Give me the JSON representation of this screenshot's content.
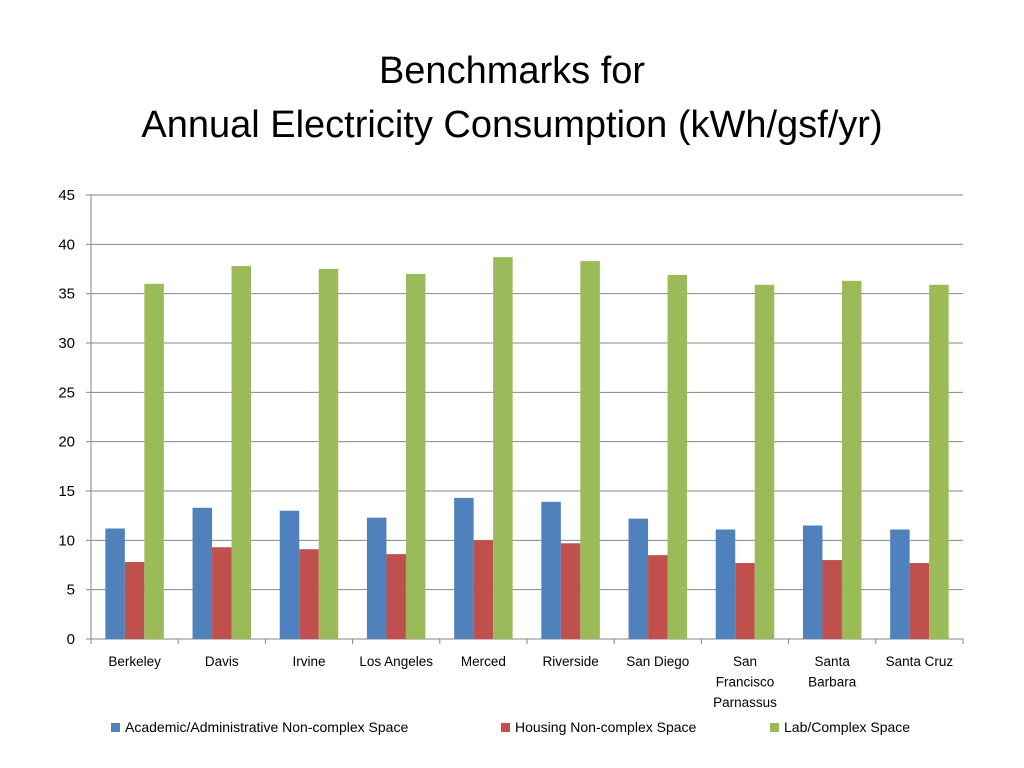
{
  "chart_data": {
    "type": "bar",
    "title_lines": [
      "Benchmarks for",
      "Annual Electricity Consumption (kWh/gsf/yr)"
    ],
    "xlabel": "",
    "ylabel": "",
    "ylim": [
      0,
      45
    ],
    "yticks": [
      0,
      5,
      10,
      15,
      20,
      25,
      30,
      35,
      40,
      45
    ],
    "grid": true,
    "legend_position": "bottom",
    "categories": [
      "Berkeley",
      "Davis",
      "Irvine",
      "Los Angeles",
      "Merced",
      "Riverside",
      "San Diego",
      "San Francisco Parnassus",
      "Santa Barbara",
      "Santa Cruz"
    ],
    "category_label_lines": [
      [
        "Berkeley"
      ],
      [
        "Davis"
      ],
      [
        "Irvine"
      ],
      [
        "Los Angeles"
      ],
      [
        "Merced"
      ],
      [
        "Riverside"
      ],
      [
        "San Diego"
      ],
      [
        "San",
        "Francisco",
        "Parnassus"
      ],
      [
        "Santa",
        "Barbara"
      ],
      [
        "Santa Cruz"
      ]
    ],
    "series": [
      {
        "name": "Academic/Administrative Non-complex Space",
        "color": "#4f81bd",
        "values": [
          11.2,
          13.3,
          13.0,
          12.3,
          14.3,
          13.9,
          12.2,
          11.1,
          11.5,
          11.1
        ]
      },
      {
        "name": "Housing Non-complex Space",
        "color": "#c0504d",
        "values": [
          7.8,
          9.3,
          9.1,
          8.6,
          10.0,
          9.7,
          8.5,
          7.7,
          8.0,
          7.7
        ]
      },
      {
        "name": "Lab/Complex Space",
        "color": "#9bbb59",
        "values": [
          36.0,
          37.8,
          37.5,
          37.0,
          38.7,
          38.3,
          36.9,
          35.9,
          36.3,
          35.9
        ]
      }
    ]
  }
}
